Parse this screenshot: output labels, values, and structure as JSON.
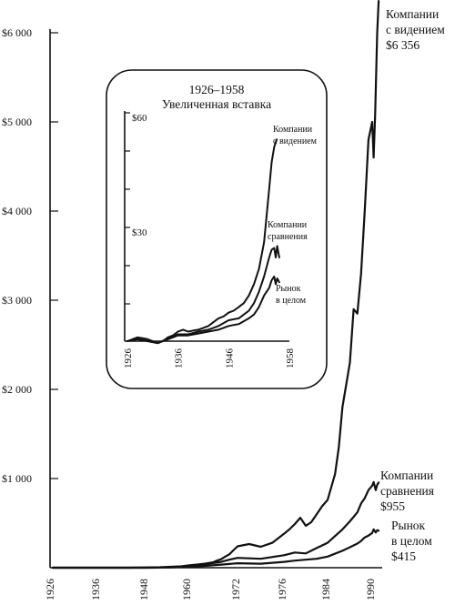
{
  "chart_data": [
    {
      "type": "line",
      "title": "",
      "xlabel": "",
      "ylabel": "",
      "x_ticks": [
        "1926",
        "1936",
        "1948",
        "1960",
        "1972",
        "1976",
        "1984",
        "1990"
      ],
      "y_ticks": [
        "$1 000",
        "$2 000",
        "$3 000",
        "$4 000",
        "$5 000",
        "$6 000"
      ],
      "y_tick_values": [
        1000,
        2000,
        3000,
        4000,
        5000,
        6000
      ],
      "ylim": [
        0,
        6000
      ],
      "grid": false,
      "series": [
        {
          "name": "Компании с видением",
          "label_lines": [
            "Компании",
            "с видением",
            "$6 356"
          ],
          "end_value": 6356,
          "points": [
            [
              1926,
              0
            ],
            [
              1934,
              0
            ],
            [
              1944,
              0
            ],
            [
              1952,
              5
            ],
            [
              1955,
              10
            ],
            [
              1958,
              15
            ],
            [
              1960,
              25
            ],
            [
              1962,
              35
            ],
            [
              1964,
              45
            ],
            [
              1966,
              60
            ],
            [
              1967,
              80
            ],
            [
              1968,
              95
            ],
            [
              1969,
              125
            ],
            [
              1970,
              150
            ],
            [
              1971,
              195
            ],
            [
              1972,
              240
            ],
            [
              1973,
              265
            ],
            [
              1974,
              235
            ],
            [
              1975,
              280
            ],
            [
              1976,
              380
            ],
            [
              1977,
              430
            ],
            [
              1978,
              490
            ],
            [
              1979,
              560
            ],
            [
              1980,
              470
            ],
            [
              1981,
              510
            ],
            [
              1982,
              600
            ],
            [
              1983,
              690
            ],
            [
              1984,
              760
            ],
            [
              1985,
              1050
            ],
            [
              1985.5,
              1350
            ],
            [
              1986,
              1800
            ],
            [
              1987,
              2300
            ],
            [
              1987.5,
              2900
            ],
            [
              1988,
              2850
            ],
            [
              1988.5,
              3300
            ],
            [
              1989,
              4000
            ],
            [
              1989.5,
              4800
            ],
            [
              1990,
              5000
            ],
            [
              1990.3,
              4600
            ],
            [
              1990.6,
              5100
            ],
            [
              1991,
              6000
            ],
            [
              1991.3,
              6356
            ]
          ]
        },
        {
          "name": "Компании сравнения",
          "label_lines": [
            "Компании",
            "сравнения",
            "$955"
          ],
          "end_value": 955,
          "points": [
            [
              1926,
              0
            ],
            [
              1940,
              0
            ],
            [
              1950,
              0
            ],
            [
              1956,
              5
            ],
            [
              1960,
              15
            ],
            [
              1964,
              40
            ],
            [
              1968,
              65
            ],
            [
              1970,
              90
            ],
            [
              1972,
              110
            ],
            [
              1974,
              100
            ],
            [
              1976,
              140
            ],
            [
              1978,
              170
            ],
            [
              1980,
              160
            ],
            [
              1982,
              220
            ],
            [
              1984,
              280
            ],
            [
              1986,
              430
            ],
            [
              1987,
              520
            ],
            [
              1988,
              620
            ],
            [
              1988.5,
              720
            ],
            [
              1989,
              780
            ],
            [
              1989.5,
              870
            ],
            [
              1990,
              920
            ],
            [
              1990.3,
              960
            ],
            [
              1990.7,
              870
            ],
            [
              1991,
              930
            ],
            [
              1991.3,
              955
            ]
          ]
        },
        {
          "name": "Рынок в целом",
          "label_lines": [
            "Рынок",
            "в целом",
            "$415"
          ],
          "end_value": 415,
          "points": [
            [
              1926,
              0
            ],
            [
              1948,
              0
            ],
            [
              1956,
              5
            ],
            [
              1960,
              10
            ],
            [
              1964,
              20
            ],
            [
              1968,
              35
            ],
            [
              1972,
              50
            ],
            [
              1974,
              45
            ],
            [
              1976,
              65
            ],
            [
              1978,
              80
            ],
            [
              1980,
              90
            ],
            [
              1982,
              100
            ],
            [
              1984,
              125
            ],
            [
              1986,
              190
            ],
            [
              1987,
              230
            ],
            [
              1988,
              270
            ],
            [
              1988.5,
              300
            ],
            [
              1989,
              340
            ],
            [
              1989.5,
              360
            ],
            [
              1990,
              390
            ],
            [
              1990.3,
              430
            ],
            [
              1990.7,
              395
            ],
            [
              1991,
              420
            ],
            [
              1991.3,
              415
            ]
          ]
        }
      ]
    },
    {
      "type": "line",
      "title_line1": "1926–1958",
      "title_line2": "Увеличенная вставка",
      "x_ticks": [
        "1926",
        "1936",
        "1946",
        "1958"
      ],
      "x_tick_values": [
        1926,
        1936,
        1946,
        1958
      ],
      "xlim": [
        1926,
        1958
      ],
      "y_ticks": [
        "$60",
        "$30"
      ],
      "y_tick_values": [
        60,
        30
      ],
      "ylim": [
        0,
        60
      ],
      "series": [
        {
          "name": "Компании с видением",
          "label_lines": [
            "Компании",
            "с видением"
          ],
          "points": [
            [
              1926,
              0
            ],
            [
              1927,
              0.5
            ],
            [
              1928,
              1
            ],
            [
              1929,
              0.8
            ],
            [
              1930,
              0.5
            ],
            [
              1931,
              0
            ],
            [
              1932,
              -0.5
            ],
            [
              1933,
              0
            ],
            [
              1934,
              1
            ],
            [
              1935,
              1.5
            ],
            [
              1936,
              2.5
            ],
            [
              1937,
              3
            ],
            [
              1938,
              2.5
            ],
            [
              1939,
              2.8
            ],
            [
              1940,
              3
            ],
            [
              1941,
              3.5
            ],
            [
              1942,
              4
            ],
            [
              1943,
              5
            ],
            [
              1944,
              6
            ],
            [
              1945,
              6.5
            ],
            [
              1946,
              7.5
            ],
            [
              1947,
              8
            ],
            [
              1948,
              9
            ],
            [
              1949,
              10
            ],
            [
              1950,
              12
            ],
            [
              1951,
              15
            ],
            [
              1952,
              19
            ],
            [
              1953,
              26
            ],
            [
              1953.5,
              33
            ],
            [
              1954,
              40
            ],
            [
              1954.5,
              47
            ],
            [
              1955,
              51
            ],
            [
              1955.5,
              53
            ]
          ]
        },
        {
          "name": "Компании сравнения",
          "label_lines": [
            "Компании",
            "сравнения"
          ],
          "points": [
            [
              1926,
              0
            ],
            [
              1928,
              0.6
            ],
            [
              1930,
              0
            ],
            [
              1932,
              -0.5
            ],
            [
              1934,
              0.7
            ],
            [
              1936,
              1.8
            ],
            [
              1938,
              1.8
            ],
            [
              1940,
              2.5
            ],
            [
              1942,
              3
            ],
            [
              1944,
              4
            ],
            [
              1946,
              5.5
            ],
            [
              1948,
              6
            ],
            [
              1950,
              8
            ],
            [
              1951,
              10
            ],
            [
              1952,
              13
            ],
            [
              1953,
              17
            ],
            [
              1954,
              22
            ],
            [
              1954.5,
              24
            ],
            [
              1955,
              24.5
            ],
            [
              1955.3,
              22
            ],
            [
              1955.6,
              25
            ],
            [
              1956,
              22
            ]
          ]
        },
        {
          "name": "Рынок в целом",
          "label_lines": [
            "Рынок",
            "в целом"
          ],
          "points": [
            [
              1926,
              0
            ],
            [
              1928,
              0.5
            ],
            [
              1930,
              0
            ],
            [
              1932,
              -0.5
            ],
            [
              1934,
              0.5
            ],
            [
              1936,
              1.5
            ],
            [
              1938,
              1.5
            ],
            [
              1940,
              2
            ],
            [
              1942,
              2.5
            ],
            [
              1944,
              3
            ],
            [
              1946,
              4
            ],
            [
              1948,
              4.5
            ],
            [
              1950,
              6
            ],
            [
              1951,
              7
            ],
            [
              1952,
              9
            ],
            [
              1953,
              12
            ],
            [
              1954,
              14
            ],
            [
              1954.5,
              16
            ],
            [
              1955,
              17
            ],
            [
              1955.3,
              15
            ],
            [
              1955.6,
              16.5
            ],
            [
              1956,
              15.5
            ]
          ]
        }
      ]
    }
  ]
}
